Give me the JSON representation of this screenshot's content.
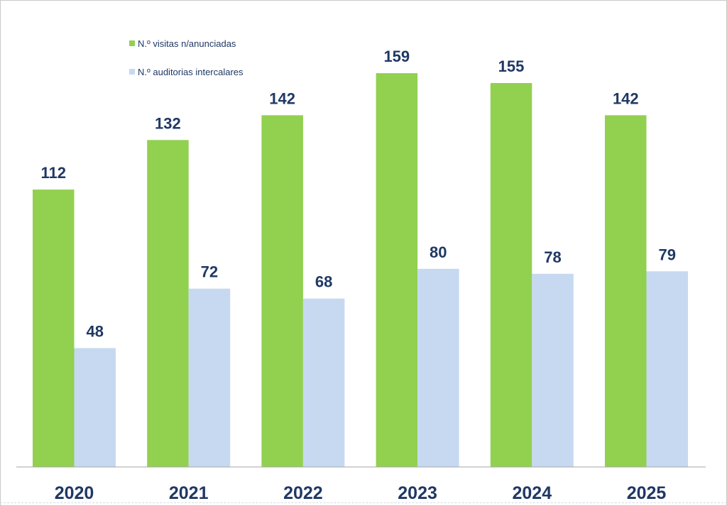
{
  "chart_data": {
    "type": "bar",
    "categories": [
      "2020",
      "2021",
      "2022",
      "2023",
      "2024",
      "2025"
    ],
    "series": [
      {
        "name": "N.º visitas n/anunciadas",
        "color": "#92d050",
        "values": [
          112,
          132,
          142,
          159,
          155,
          142
        ]
      },
      {
        "name": "N.º auditorias intercalares",
        "color": "#c6d9f1",
        "values": [
          48,
          72,
          68,
          80,
          78,
          79
        ]
      }
    ],
    "title": "",
    "xlabel": "",
    "ylabel": "",
    "ylim": [
      0,
      170
    ],
    "grid": false,
    "legend_position": "top-left",
    "text_color": "#1f3864",
    "axis_color": "#a6a6a6"
  }
}
